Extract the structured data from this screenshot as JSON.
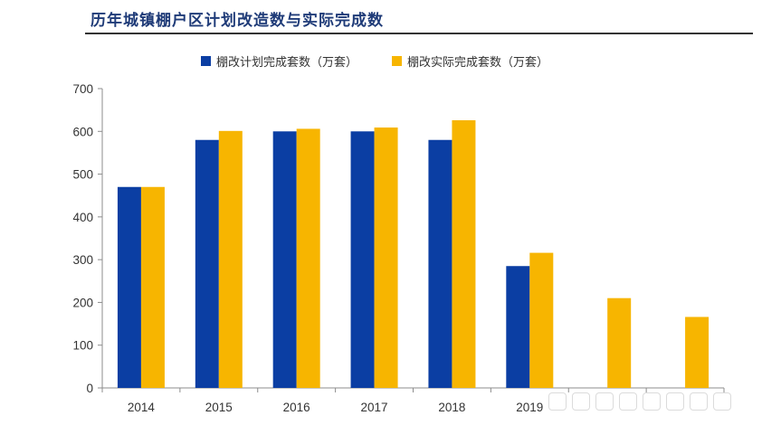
{
  "chart_data": {
    "type": "bar",
    "title": "历年城镇棚户区计划改造数与实际完成数",
    "categories": [
      "2014",
      "2015",
      "2016",
      "2017",
      "2018",
      "2019",
      "",
      ""
    ],
    "series": [
      {
        "name": "棚改计划完成套数（万套）",
        "color": "#0b3ea3",
        "values": [
          470,
          580,
          600,
          600,
          580,
          285,
          null,
          null
        ]
      },
      {
        "name": "棚改实际完成套数（万套）",
        "color": "#f7b500",
        "values": [
          470,
          601,
          606,
          609,
          626,
          316,
          210,
          166
        ]
      }
    ],
    "ylim": [
      0,
      700
    ],
    "yticks": [
      0,
      100,
      200,
      300,
      400,
      500,
      600,
      700
    ],
    "xlabel": "",
    "ylabel": "",
    "grid": false,
    "legend": "top"
  }
}
